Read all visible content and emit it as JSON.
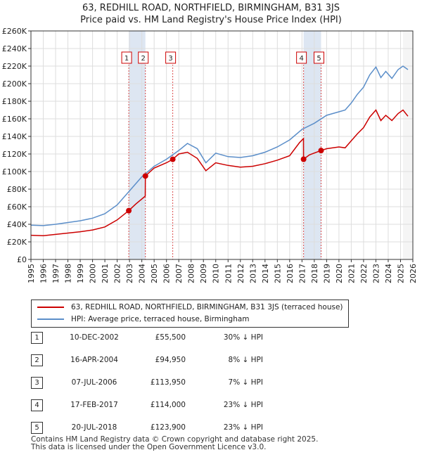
{
  "title": {
    "line1": "63, REDHILL ROAD, NORTHFIELD, BIRMINGHAM, B31 3JS",
    "line2": "Price paid vs. HM Land Registry's House Price Index (HPI)"
  },
  "chart_data": {
    "type": "line",
    "xlim": [
      1995,
      2026
    ],
    "ylim": [
      0,
      260000
    ],
    "y_ticks": [
      0,
      20000,
      40000,
      60000,
      80000,
      100000,
      120000,
      140000,
      160000,
      180000,
      200000,
      220000,
      240000,
      260000
    ],
    "y_tick_labels": [
      "£0",
      "£20K",
      "£40K",
      "£60K",
      "£80K",
      "£100K",
      "£120K",
      "£140K",
      "£160K",
      "£180K",
      "£200K",
      "£220K",
      "£240K",
      "£260K"
    ],
    "x_ticks": [
      1995,
      1996,
      1997,
      1998,
      1999,
      2000,
      2001,
      2002,
      2003,
      2004,
      2005,
      2006,
      2007,
      2008,
      2009,
      2010,
      2011,
      2012,
      2013,
      2014,
      2015,
      2016,
      2017,
      2018,
      2019,
      2020,
      2021,
      2022,
      2023,
      2024,
      2025,
      2026
    ],
    "x_tick_labels": [
      "1995",
      "1996",
      "1997",
      "1998",
      "1999",
      "2000",
      "2001",
      "2002",
      "2003",
      "2004",
      "2005",
      "2006",
      "2007",
      "2008",
      "2009",
      "2010",
      "2011",
      "2012",
      "2013",
      "2014",
      "2015",
      "2016",
      "2017",
      "2018",
      "2019",
      "2020",
      "2021",
      "2022",
      "2023",
      "2024",
      "2025",
      "2026"
    ],
    "grid": true,
    "series": [
      {
        "name": "63, REDHILL ROAD, NORTHFIELD, BIRMINGHAM, B31 3JS (terraced house)",
        "color": "#cc0000",
        "points": [
          [
            1995.0,
            27500
          ],
          [
            1996.0,
            27000
          ],
          [
            1997.0,
            28500
          ],
          [
            1998.0,
            30000
          ],
          [
            1999.0,
            31500
          ],
          [
            2000.0,
            33500
          ],
          [
            2001.0,
            37000
          ],
          [
            2002.0,
            45000
          ],
          [
            2002.94,
            55500
          ],
          [
            2003.5,
            63000
          ],
          [
            2004.28,
            72000
          ],
          [
            2004.29,
            94950
          ],
          [
            2005.0,
            104000
          ],
          [
            2006.0,
            110000
          ],
          [
            2006.51,
            113950
          ],
          [
            2007.0,
            120000
          ],
          [
            2007.7,
            122000
          ],
          [
            2008.5,
            115000
          ],
          [
            2009.2,
            101000
          ],
          [
            2010.0,
            110000
          ],
          [
            2011.0,
            107000
          ],
          [
            2012.0,
            105000
          ],
          [
            2013.0,
            106000
          ],
          [
            2014.0,
            109000
          ],
          [
            2015.0,
            113000
          ],
          [
            2016.0,
            118000
          ],
          [
            2016.8,
            133000
          ],
          [
            2017.12,
            137500
          ],
          [
            2017.13,
            114000
          ],
          [
            2017.6,
            119000
          ],
          [
            2018.55,
            123900
          ],
          [
            2019.0,
            126000
          ],
          [
            2020.0,
            128000
          ],
          [
            2020.5,
            127000
          ],
          [
            2021.0,
            135000
          ],
          [
            2021.5,
            143000
          ],
          [
            2022.0,
            150000
          ],
          [
            2022.5,
            162000
          ],
          [
            2023.0,
            170000
          ],
          [
            2023.4,
            158000
          ],
          [
            2023.8,
            164000
          ],
          [
            2024.3,
            158000
          ],
          [
            2024.8,
            166000
          ],
          [
            2025.2,
            170000
          ],
          [
            2025.6,
            163000
          ]
        ]
      },
      {
        "name": "HPI: Average price, terraced house, Birmingham",
        "color": "#5b8ec9",
        "points": [
          [
            1995.0,
            39000
          ],
          [
            1996.0,
            38500
          ],
          [
            1997.0,
            40000
          ],
          [
            1998.0,
            42000
          ],
          [
            1999.0,
            44000
          ],
          [
            2000.0,
            47000
          ],
          [
            2001.0,
            52000
          ],
          [
            2002.0,
            62000
          ],
          [
            2003.0,
            78000
          ],
          [
            2004.0,
            94000
          ],
          [
            2005.0,
            106000
          ],
          [
            2006.0,
            114000
          ],
          [
            2007.0,
            124000
          ],
          [
            2007.7,
            132000
          ],
          [
            2008.5,
            126000
          ],
          [
            2009.2,
            110000
          ],
          [
            2010.0,
            121000
          ],
          [
            2011.0,
            117000
          ],
          [
            2012.0,
            116000
          ],
          [
            2013.0,
            118000
          ],
          [
            2014.0,
            122000
          ],
          [
            2015.0,
            128000
          ],
          [
            2016.0,
            136000
          ],
          [
            2017.0,
            148000
          ],
          [
            2018.0,
            155000
          ],
          [
            2019.0,
            164000
          ],
          [
            2020.0,
            168000
          ],
          [
            2020.5,
            170000
          ],
          [
            2021.0,
            178000
          ],
          [
            2021.5,
            188000
          ],
          [
            2022.0,
            196000
          ],
          [
            2022.5,
            210000
          ],
          [
            2023.0,
            219000
          ],
          [
            2023.4,
            207000
          ],
          [
            2023.8,
            214000
          ],
          [
            2024.3,
            206000
          ],
          [
            2024.8,
            216000
          ],
          [
            2025.2,
            220000
          ],
          [
            2025.6,
            216000
          ]
        ]
      }
    ],
    "sales": [
      {
        "num": "1",
        "year": 2002.94,
        "value": 55500
      },
      {
        "num": "2",
        "year": 2004.29,
        "value": 94950
      },
      {
        "num": "3",
        "year": 2006.51,
        "value": 113950
      },
      {
        "num": "4",
        "year": 2017.13,
        "value": 114000
      },
      {
        "num": "5",
        "year": 2018.55,
        "value": 123900
      }
    ],
    "highlight_spans": [
      [
        2002.94,
        2004.29
      ],
      [
        2017.13,
        2018.55
      ]
    ]
  },
  "legend": {
    "property_label": "63, REDHILL ROAD, NORTHFIELD, BIRMINGHAM, B31 3JS (terraced house)",
    "hpi_label": "HPI: Average price, terraced house, Birmingham",
    "property_color": "#cc0000",
    "hpi_color": "#5b8ec9"
  },
  "transactions": [
    {
      "num": "1",
      "date": "10-DEC-2002",
      "price": "£55,500",
      "hpi": "30% ↓ HPI"
    },
    {
      "num": "2",
      "date": "16-APR-2004",
      "price": "£94,950",
      "hpi": "8% ↓ HPI"
    },
    {
      "num": "3",
      "date": "07-JUL-2006",
      "price": "£113,950",
      "hpi": "7% ↓ HPI"
    },
    {
      "num": "4",
      "date": "17-FEB-2017",
      "price": "£114,000",
      "hpi": "23% ↓ HPI"
    },
    {
      "num": "5",
      "date": "20-JUL-2018",
      "price": "£123,900",
      "hpi": "23% ↓ HPI"
    }
  ],
  "footer": {
    "line1": "Contains HM Land Registry data © Crown copyright and database right 2025.",
    "line2": "This data is licensed under the Open Government Licence v3.0."
  }
}
